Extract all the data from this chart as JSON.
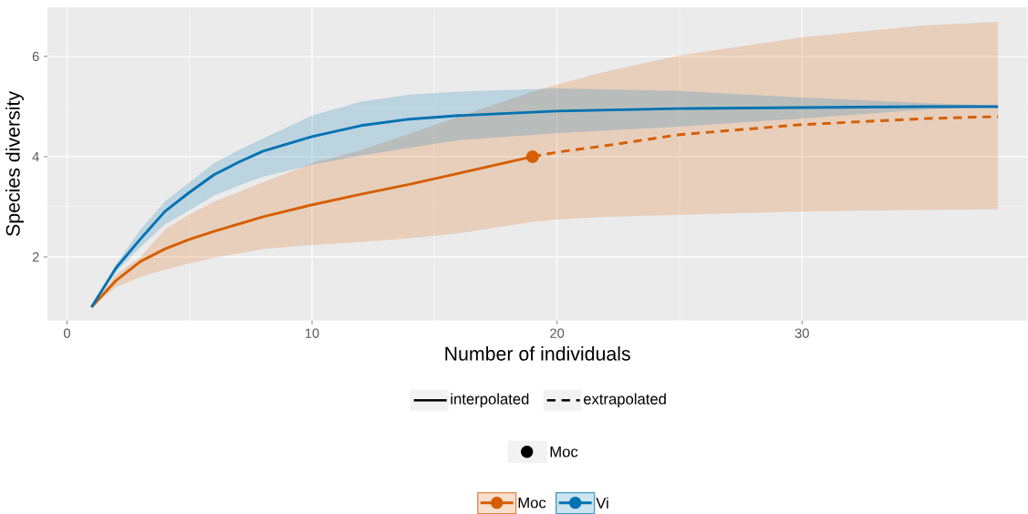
{
  "chart_data": {
    "type": "line",
    "xlabel": "Number of individuals",
    "ylabel": "Species diversity",
    "xlim": [
      -0.8,
      39.2
    ],
    "ylim": [
      0.73,
      6.98
    ],
    "xticks": [
      0,
      10,
      20,
      30
    ],
    "yticks": [
      2,
      4,
      6
    ],
    "grid": true,
    "legend": "bottom",
    "annotations": [
      "interpolated",
      "extrapolated",
      "Moc"
    ],
    "series": [
      {
        "name": "Moc",
        "color": "#d55e00",
        "line_style": "solid",
        "x": [
          1,
          2,
          3,
          4,
          5,
          6,
          8,
          10,
          12,
          14,
          16,
          19
        ],
        "values": [
          1.0,
          1.53,
          1.91,
          2.16,
          2.35,
          2.51,
          2.8,
          3.04,
          3.25,
          3.45,
          3.67,
          4.0
        ],
        "lower": [
          1.0,
          1.4,
          1.6,
          1.75,
          1.87,
          1.98,
          2.16,
          2.24,
          2.3,
          2.37,
          2.47,
          2.7
        ],
        "upper": [
          1.0,
          1.65,
          2.0,
          2.55,
          2.85,
          3.1,
          3.49,
          3.87,
          4.13,
          4.46,
          4.8,
          5.3
        ]
      },
      {
        "color": "#d55e00",
        "line_style": "dashed",
        "x": [
          19,
          20,
          22,
          25,
          30,
          35,
          38
        ],
        "values": [
          4.0,
          4.09,
          4.22,
          4.44,
          4.64,
          4.76,
          4.8
        ],
        "lower": [
          2.7,
          2.75,
          2.8,
          2.84,
          2.91,
          2.94,
          2.95
        ],
        "upper": [
          5.3,
          5.44,
          5.7,
          6.02,
          6.38,
          6.62,
          6.69
        ]
      },
      {
        "name": "Vi",
        "color": "#0072b2",
        "line_style": "solid",
        "x": [
          1,
          2,
          3,
          4,
          5,
          6,
          7,
          8,
          10,
          12,
          14,
          16,
          20,
          25,
          30,
          35,
          38
        ],
        "values": [
          1.0,
          1.78,
          2.36,
          2.91,
          3.29,
          3.64,
          3.89,
          4.11,
          4.4,
          4.62,
          4.75,
          4.82,
          4.91,
          4.96,
          4.98,
          5.0,
          5.0
        ],
        "lower": [
          1.0,
          1.7,
          2.2,
          2.65,
          2.93,
          3.22,
          3.42,
          3.6,
          3.84,
          4.02,
          4.18,
          4.33,
          4.47,
          4.6,
          4.76,
          4.94,
          5.0
        ],
        "upper": [
          1.0,
          1.85,
          2.55,
          3.11,
          3.49,
          3.87,
          4.13,
          4.36,
          4.82,
          5.1,
          5.24,
          5.3,
          5.36,
          5.31,
          5.18,
          5.07,
          5.02
        ]
      },
      {
        "type": "scatter",
        "marker": "circle",
        "color": "#d55e00",
        "x": [
          19
        ],
        "values": [
          4.0
        ]
      }
    ]
  }
}
